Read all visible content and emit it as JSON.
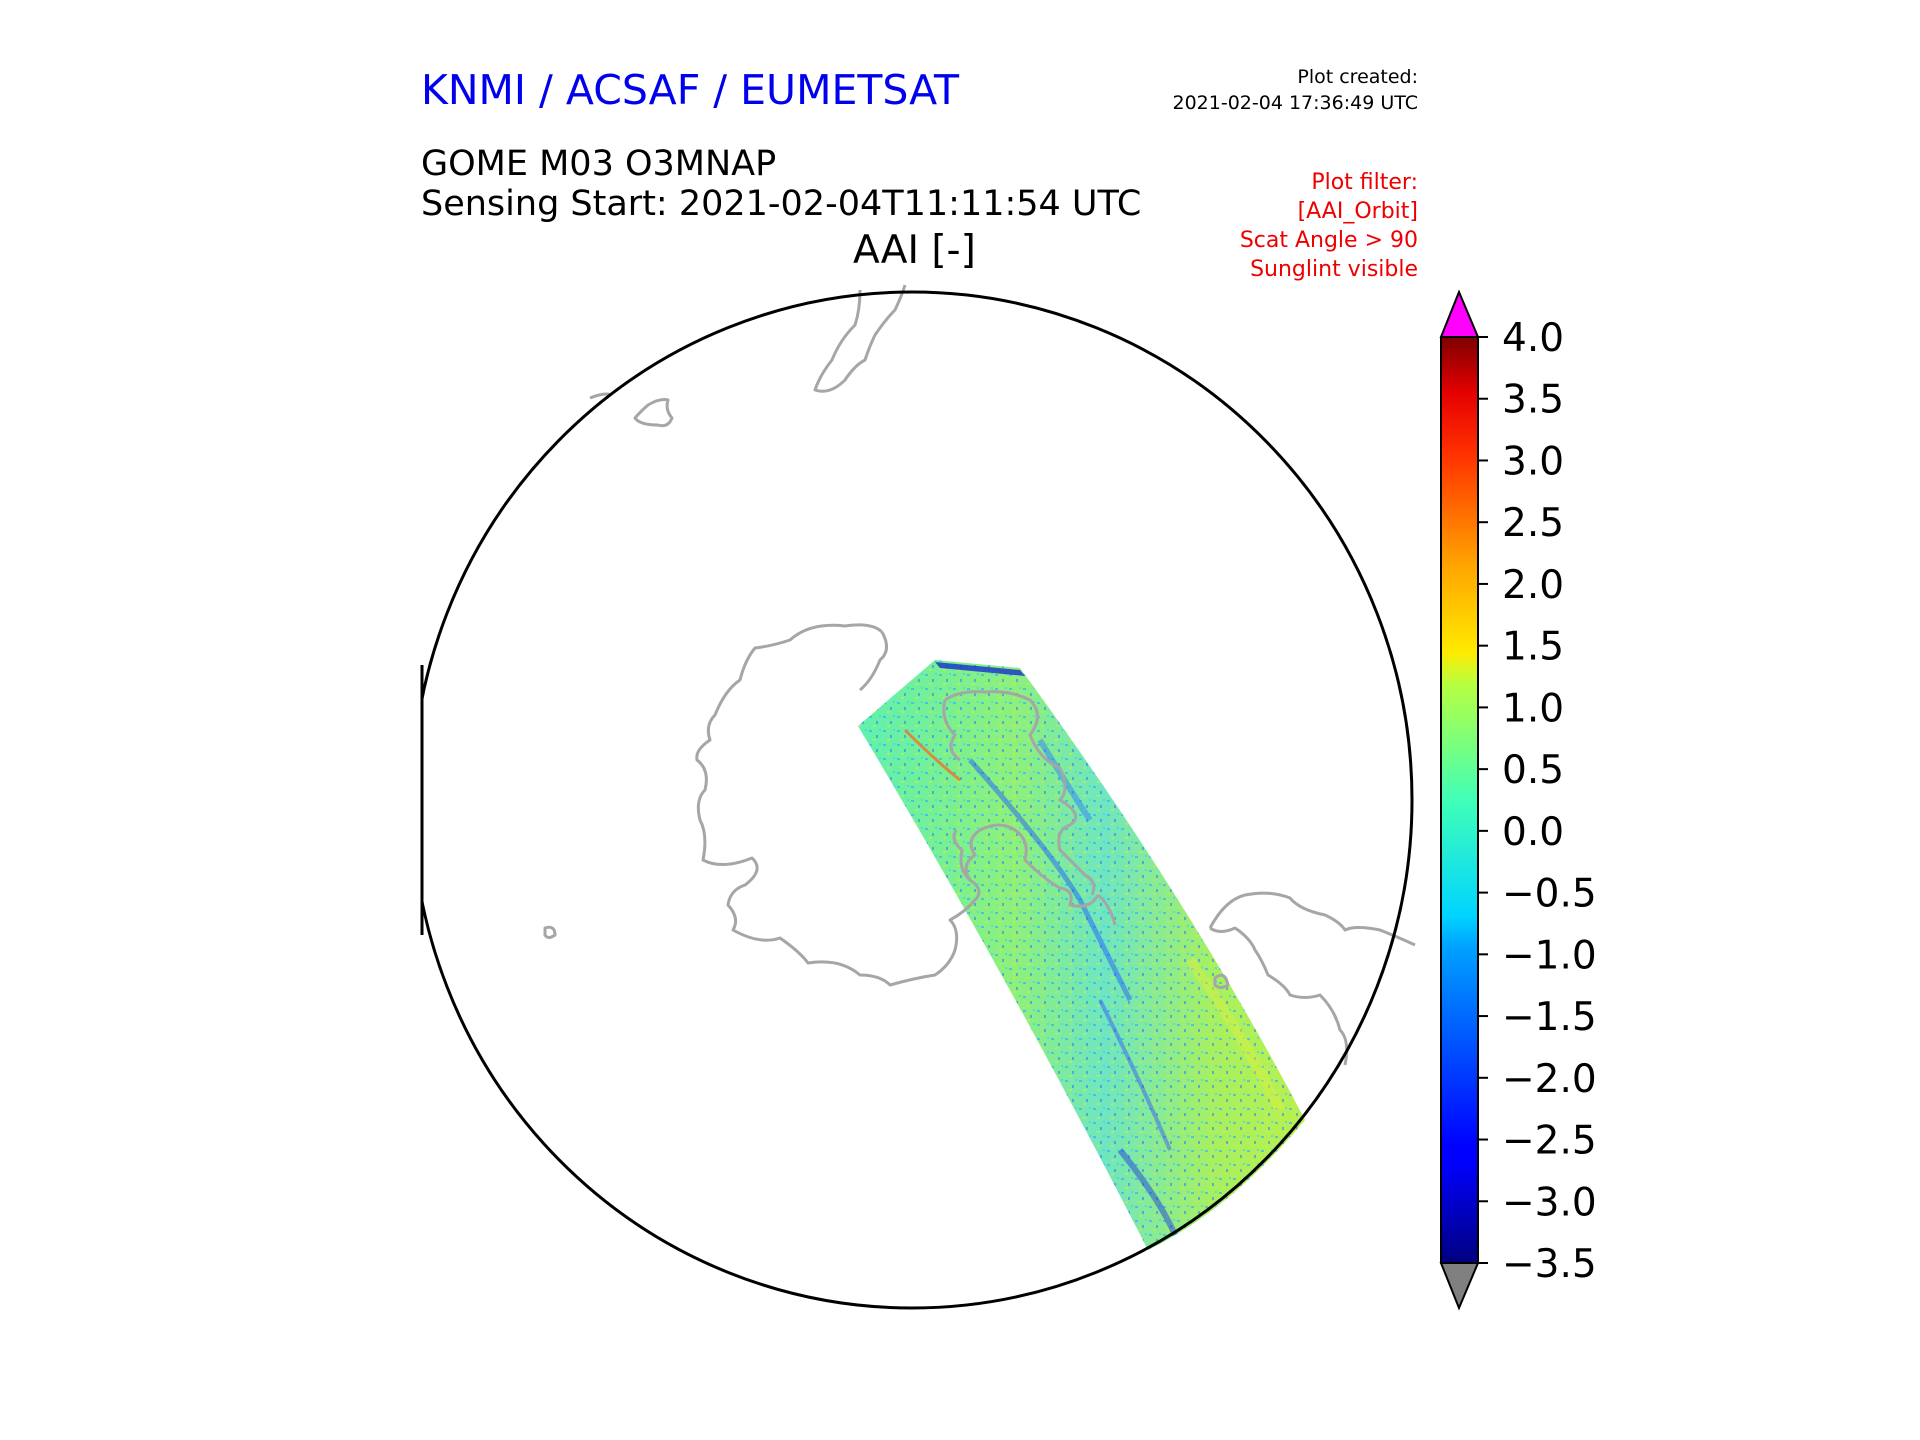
{
  "header": {
    "organization": "KNMI / ACSAF / EUMETSAT",
    "created_label": "Plot created:",
    "created_time": "2021-02-04 17:36:49 UTC",
    "product": "GOME M03 O3MNAP",
    "sensing_start": "Sensing Start: 2021-02-04T11:11:54 UTC",
    "variable": "AAI [-]",
    "filter_lines": [
      "Plot filter:",
      "[AAI_Orbit]",
      "Scat Angle > 90",
      "Sunglint visible"
    ]
  },
  "colors": {
    "org_text": "#0000ee",
    "filter_text": "#ee0000",
    "coastline": "#a6a6a6",
    "over_range": "#ff00ff",
    "under_range": "#808080"
  },
  "colorbar": {
    "colormap": "jet",
    "min": -3.5,
    "max": 4.0,
    "ticks": [
      "4.0",
      "3.5",
      "3.0",
      "2.5",
      "2.0",
      "1.5",
      "1.0",
      "0.5",
      "0.0",
      "−0.5",
      "−1.0",
      "−1.5",
      "−2.0",
      "−2.5",
      "−3.0",
      "−3.5"
    ],
    "extend": "both"
  },
  "map": {
    "projection": "south-polar orthographic",
    "coastline_color": "#a6a6a6",
    "swath_typical_value": "0.0 to 0.5"
  }
}
